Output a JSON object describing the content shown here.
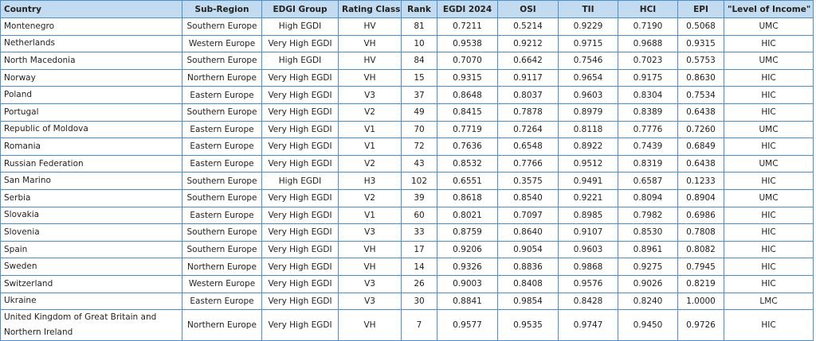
{
  "table": {
    "header": [
      "Country",
      "Sub-Region",
      "EDGI Group",
      "Rating Class",
      "Rank",
      "EGDI 2024",
      "OSI",
      "TII",
      "HCI",
      "EPI",
      "\"Level of Income\""
    ],
    "rows": [
      [
        "Montenegro",
        "Southern Europe",
        "High EGDI",
        "HV",
        "81",
        "0.7211",
        "0.5214",
        "0.9229",
        "0.7190",
        "0.5068",
        "UMC"
      ],
      [
        "Netherlands",
        "Western Europe",
        "Very High EGDI",
        "VH",
        "10",
        "0.9538",
        "0.9212",
        "0.9715",
        "0.9688",
        "0.9315",
        "HIC"
      ],
      [
        "North Macedonia",
        "Southern Europe",
        "High EGDI",
        "HV",
        "84",
        "0.7070",
        "0.6642",
        "0.7546",
        "0.7023",
        "0.5753",
        "UMC"
      ],
      [
        "Norway",
        "Northern Europe",
        "Very High EGDI",
        "VH",
        "15",
        "0.9315",
        "0.9117",
        "0.9654",
        "0.9175",
        "0.8630",
        "HIC"
      ],
      [
        "Poland",
        "Eastern Europe",
        "Very High EGDI",
        "V3",
        "37",
        "0.8648",
        "0.8037",
        "0.9603",
        "0.8304",
        "0.7534",
        "HIC"
      ],
      [
        "Portugal",
        "Southern Europe",
        "Very High EGDI",
        "V2",
        "49",
        "0.8415",
        "0.7878",
        "0.8979",
        "0.8389",
        "0.6438",
        "HIC"
      ],
      [
        "Republic of Moldova",
        "Eastern Europe",
        "Very High EGDI",
        "V1",
        "70",
        "0.7719",
        "0.7264",
        "0.8118",
        "0.7776",
        "0.7260",
        "UMC"
      ],
      [
        "Romania",
        "Eastern Europe",
        "Very High EGDI",
        "V1",
        "72",
        "0.7636",
        "0.6548",
        "0.8922",
        "0.7439",
        "0.6849",
        "HIC"
      ],
      [
        "Russian Federation",
        "Eastern Europe",
        "Very High EGDI",
        "V2",
        "43",
        "0.8532",
        "0.7766",
        "0.9512",
        "0.8319",
        "0.6438",
        "UMC"
      ],
      [
        "San Marino",
        "Southern Europe",
        "High EGDI",
        "H3",
        "102",
        "0.6551",
        "0.3575",
        "0.9491",
        "0.6587",
        "0.1233",
        "HIC"
      ],
      [
        "Serbia",
        "Southern Europe",
        "Very High EGDI",
        "V2",
        "39",
        "0.8618",
        "0.8540",
        "0.9221",
        "0.8094",
        "0.8904",
        "UMC"
      ],
      [
        "Slovakia",
        "Eastern Europe",
        "Very High EGDI",
        "V1",
        "60",
        "0.8021",
        "0.7097",
        "0.8985",
        "0.7982",
        "0.6986",
        "HIC"
      ],
      [
        "Slovenia",
        "Southern Europe",
        "Very High EGDI",
        "V3",
        "33",
        "0.8759",
        "0.8640",
        "0.9107",
        "0.8530",
        "0.7808",
        "HIC"
      ],
      [
        "Spain",
        "Southern Europe",
        "Very High EGDI",
        "VH",
        "17",
        "0.9206",
        "0.9054",
        "0.9603",
        "0.8961",
        "0.8082",
        "HIC"
      ],
      [
        "Sweden",
        "Northern Europe",
        "Very High EGDI",
        "VH",
        "14",
        "0.9326",
        "0.8836",
        "0.9868",
        "0.9275",
        "0.7945",
        "HIC"
      ],
      [
        "Switzerland",
        "Western Europe",
        "Very High EGDI",
        "V3",
        "26",
        "0.9003",
        "0.8408",
        "0.9576",
        "0.9026",
        "0.8219",
        "HIC"
      ],
      [
        "Ukraine",
        "Eastern Europe",
        "Very High EGDI",
        "V3",
        "30",
        "0.8841",
        "0.9854",
        "0.8428",
        "0.8240",
        "1.0000",
        "LMC"
      ],
      [
        "United Kingdom of Great Britain and Northern Ireland",
        "Northern Europe",
        "Very High EGDI",
        "VH",
        "7",
        "0.9577",
        "0.9535",
        "0.9747",
        "0.9450",
        "0.9726",
        "HIC"
      ]
    ]
  }
}
